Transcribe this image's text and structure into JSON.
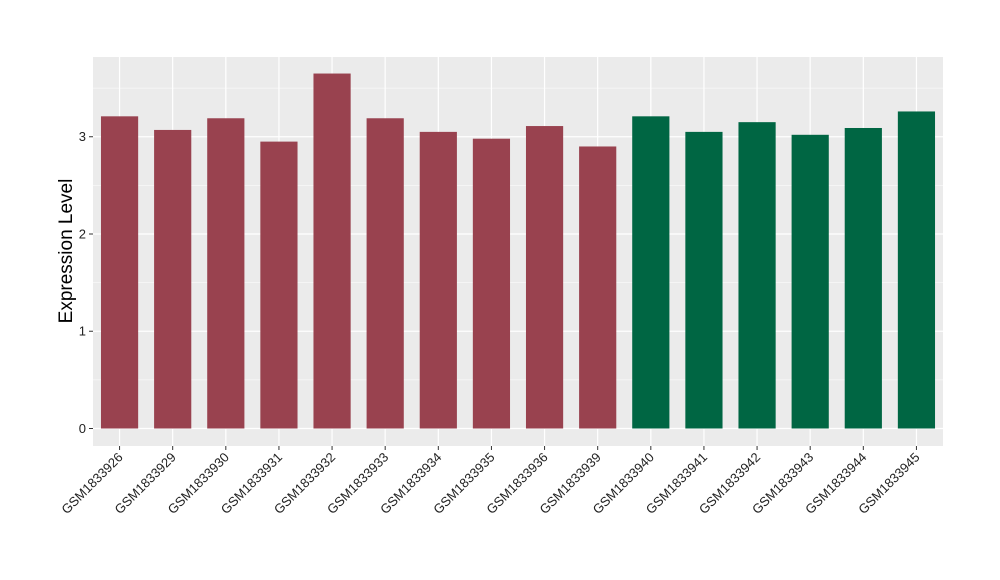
{
  "chart_data": {
    "type": "bar",
    "ylabel": "Expression Level",
    "xlabel": "",
    "title": "",
    "ylim": [
      -0.18,
      3.82
    ],
    "yticks": [
      0,
      1,
      2,
      3
    ],
    "grid": true,
    "legend": "none",
    "categories": [
      "GSM1833926",
      "GSM1833929",
      "GSM1833930",
      "GSM1833931",
      "GSM1833932",
      "GSM1833933",
      "GSM1833934",
      "GSM1833935",
      "GSM1833936",
      "GSM1833939",
      "GSM1833940",
      "GSM1833941",
      "GSM1833942",
      "GSM1833943",
      "GSM1833944",
      "GSM1833945"
    ],
    "values": [
      3.21,
      3.07,
      3.19,
      2.95,
      3.65,
      3.19,
      3.05,
      2.98,
      3.11,
      2.9,
      3.21,
      3.05,
      3.15,
      3.02,
      3.09,
      3.26
    ],
    "bar_colors": [
      "#99424f",
      "#99424f",
      "#99424f",
      "#99424f",
      "#99424f",
      "#99424f",
      "#99424f",
      "#99424f",
      "#99424f",
      "#99424f",
      "#006643",
      "#006643",
      "#006643",
      "#006643",
      "#006643",
      "#006643"
    ],
    "panel_background": "#ebebeb",
    "gridline_color": "#ffffff"
  }
}
